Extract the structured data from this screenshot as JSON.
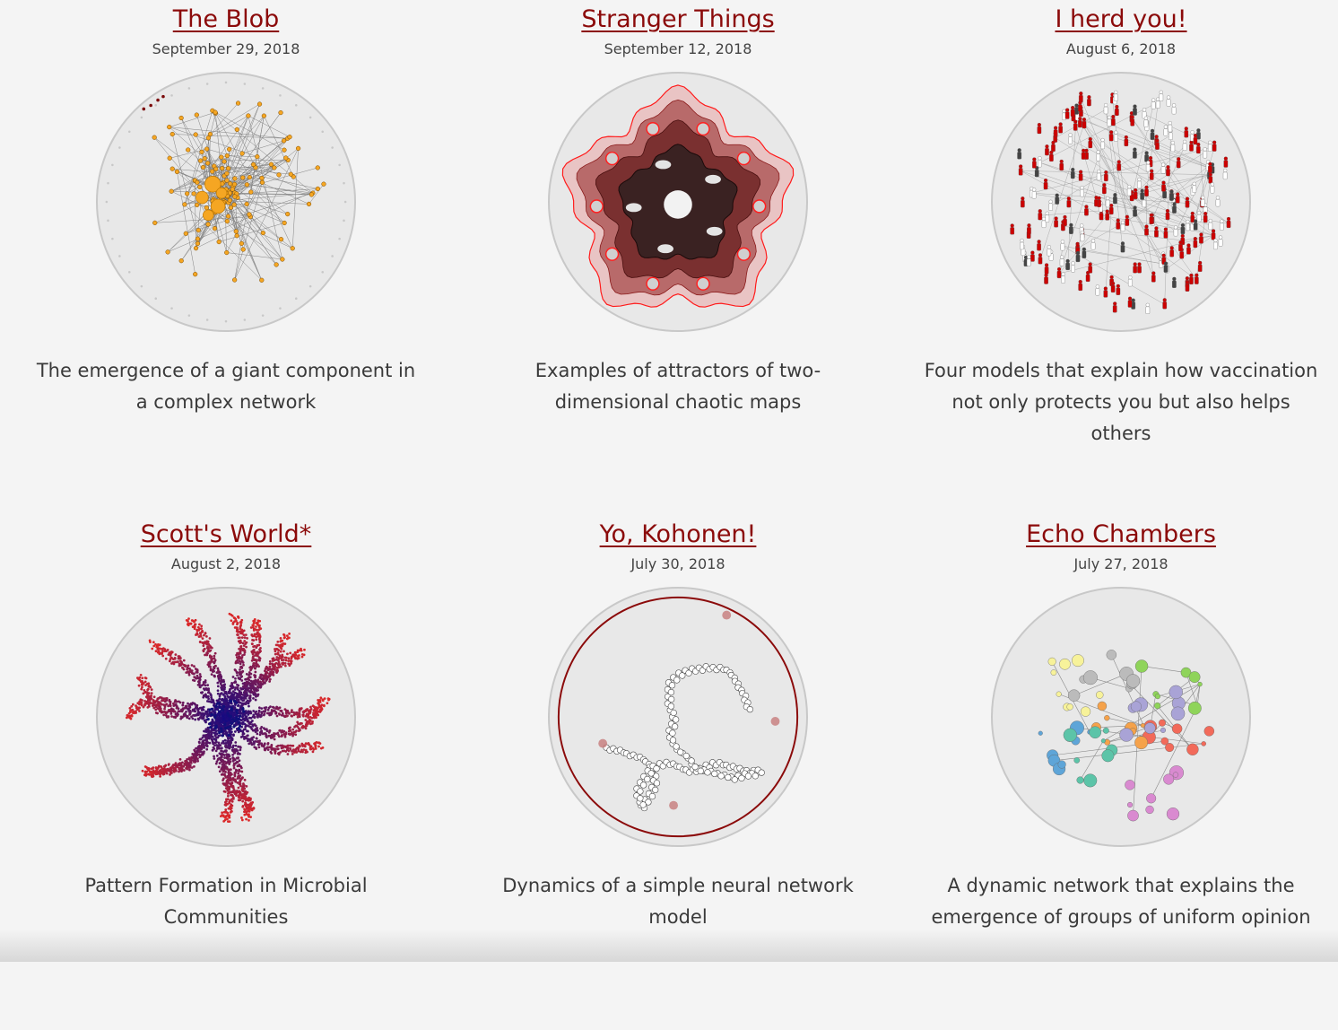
{
  "posts": [
    {
      "title": "The Blob",
      "date": "September 29, 2018",
      "desc": "The emergence of a giant component in a complex network",
      "icon": "network-blob-thumbnail"
    },
    {
      "title": "Stranger Things",
      "date": "September 12, 2018",
      "desc": "Examples of attractors of two-dimensional chaotic maps",
      "icon": "chaotic-attractor-thumbnail"
    },
    {
      "title": "I herd you!",
      "date": "August 6, 2018",
      "desc": "Four models that explain how vaccination not only protects you but also helps others",
      "icon": "herd-immunity-thumbnail"
    },
    {
      "title": "Scott's World*",
      "date": "August 2, 2018",
      "desc": "Pattern Formation in Microbial Communities",
      "icon": "microbial-pattern-thumbnail"
    },
    {
      "title": "Yo, Kohonen!",
      "date": "July 30, 2018",
      "desc": "Dynamics of a simple neural network model",
      "icon": "kohonen-network-thumbnail"
    },
    {
      "title": "Echo Chambers",
      "date": "July 27, 2018",
      "desc": "A dynamic network that explains the emergence of groups of uniform opinion",
      "icon": "echo-chambers-thumbnail"
    }
  ],
  "colors": {
    "link": "#8b0a0a",
    "background": "#f4f4f4"
  }
}
